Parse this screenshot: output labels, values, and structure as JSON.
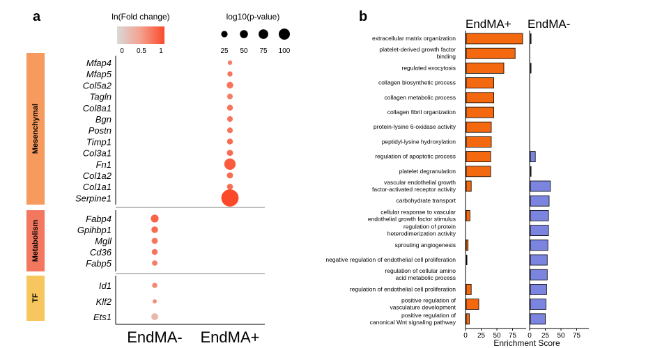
{
  "panel_a": {
    "label": "a",
    "legend_fc_title": "ln(Fold change)",
    "legend_fc_ticks": [
      "0",
      "0.5",
      "1"
    ],
    "legend_p_title": "log10(p-value)",
    "legend_p_ticks": [
      "25",
      "50",
      "75",
      "100"
    ],
    "legend_p_values": [
      25,
      50,
      75,
      100
    ],
    "groups": [
      {
        "name": "Mesenchymal",
        "color": "#f79a5e"
      },
      {
        "name": "Metabolism",
        "color": "#f3775f"
      },
      {
        "name": "TF",
        "color": "#f7c65f"
      }
    ]
  },
  "panel_b": {
    "label": "b",
    "col_left": "EndMA+",
    "col_right": "EndMA-",
    "xlabel": "Enrichment Score",
    "xticks": [
      "0",
      "25",
      "50",
      "75"
    ],
    "left_color": "#f4690f",
    "right_color": "#7b85e0"
  },
  "chart_data": [
    {
      "type": "scatter",
      "subtype": "dot-plot",
      "x_categories": [
        "EndMA-",
        "EndMA+"
      ],
      "genes": [
        {
          "gene": "Mfap4",
          "group": "Mesenchymal",
          "col": "EndMA+",
          "log10p": 12,
          "lnfc": 0.7
        },
        {
          "gene": "Mfap5",
          "group": "Mesenchymal",
          "col": "EndMA+",
          "log10p": 18,
          "lnfc": 0.75
        },
        {
          "gene": "Col5a2",
          "group": "Mesenchymal",
          "col": "EndMA+",
          "log10p": 30,
          "lnfc": 0.75
        },
        {
          "gene": "Tagln",
          "group": "Mesenchymal",
          "col": "EndMA+",
          "log10p": 22,
          "lnfc": 0.7
        },
        {
          "gene": "Col8a1",
          "group": "Mesenchymal",
          "col": "EndMA+",
          "log10p": 24,
          "lnfc": 0.75
        },
        {
          "gene": "Bgn",
          "group": "Mesenchymal",
          "col": "EndMA+",
          "log10p": 22,
          "lnfc": 0.75
        },
        {
          "gene": "Postn",
          "group": "Mesenchymal",
          "col": "EndMA+",
          "log10p": 22,
          "lnfc": 0.75
        },
        {
          "gene": "Timp1",
          "group": "Mesenchymal",
          "col": "EndMA+",
          "log10p": 24,
          "lnfc": 0.8
        },
        {
          "gene": "Col3a1",
          "group": "Mesenchymal",
          "col": "EndMA+",
          "log10p": 26,
          "lnfc": 0.8
        },
        {
          "gene": "Fn1",
          "group": "Mesenchymal",
          "col": "EndMA+",
          "log10p": 70,
          "lnfc": 0.9
        },
        {
          "gene": "Col1a2",
          "group": "Mesenchymal",
          "col": "EndMA+",
          "log10p": 26,
          "lnfc": 0.8
        },
        {
          "gene": "Col1a1",
          "group": "Mesenchymal",
          "col": "EndMA+",
          "log10p": 24,
          "lnfc": 0.8
        },
        {
          "gene": "Serpine1",
          "group": "Mesenchymal",
          "col": "EndMA+",
          "log10p": 120,
          "lnfc": 1.0
        },
        {
          "gene": "Fabp4",
          "group": "Metabolism",
          "col": "EndMA-",
          "log10p": 40,
          "lnfc": 0.85
        },
        {
          "gene": "Gpihbp1",
          "group": "Metabolism",
          "col": "EndMA-",
          "log10p": 30,
          "lnfc": 0.8
        },
        {
          "gene": "Mgll",
          "group": "Metabolism",
          "col": "EndMA-",
          "log10p": 26,
          "lnfc": 0.75
        },
        {
          "gene": "Cd36",
          "group": "Metabolism",
          "col": "EndMA-",
          "log10p": 24,
          "lnfc": 0.75
        },
        {
          "gene": "Fabp5",
          "group": "Metabolism",
          "col": "EndMA-",
          "log10p": 20,
          "lnfc": 0.7
        },
        {
          "gene": "Id1",
          "group": "TF",
          "col": "EndMA-",
          "log10p": 18,
          "lnfc": 0.65
        },
        {
          "gene": "Klf2",
          "group": "TF",
          "col": "EndMA-",
          "log10p": 10,
          "lnfc": 0.6
        },
        {
          "gene": "Ets1",
          "group": "TF",
          "col": "EndMA-",
          "log10p": 32,
          "lnfc": 0.3
        }
      ]
    },
    {
      "type": "bar",
      "orientation": "horizontal",
      "xlabel": "Enrichment Score",
      "xlim": [
        0,
        90
      ],
      "categories": [
        [
          "extracellular matrix organization"
        ],
        [
          "platelet-derived growth factor",
          "binding"
        ],
        [
          "regulated exocytosis"
        ],
        [
          "collagen biosynthetic process"
        ],
        [
          "collagen metabolic process"
        ],
        [
          "collagen fibril organization"
        ],
        [
          "protein-lysine 6-oxidase activity"
        ],
        [
          "peptidyl-lysine hydroxylation"
        ],
        [
          "regulation of apoptotic process"
        ],
        [
          "platelet degranulation"
        ],
        [
          "vascular endothelial growth",
          "factor-activated receptor activity"
        ],
        [
          "carbohydrate transport"
        ],
        [
          "cellular response to vascular",
          "endothelial growth factor stimulus"
        ],
        [
          "regulation of protein",
          "heterodimerization activity"
        ],
        [
          "sprouting angiogenesis"
        ],
        [
          "negative regulation of endothelial cell proliferation"
        ],
        [
          "regulation of cellular amino",
          "acid metabolic process"
        ],
        [
          "regulation of endothelial cell proliferation"
        ],
        [
          "positive regulation of",
          "vasculature development"
        ],
        [
          "positive regulation of",
          "canonical Wnt signaling pathway"
        ]
      ],
      "series": [
        {
          "name": "EndMA+",
          "values": [
            90,
            78,
            60,
            44,
            44,
            44,
            40,
            40,
            39,
            39,
            8,
            0,
            6,
            0,
            3,
            1,
            0,
            8,
            20,
            5
          ]
        },
        {
          "name": "EndMA-",
          "values": [
            1,
            0,
            1,
            0,
            0,
            0,
            0,
            0,
            8,
            1,
            32,
            30,
            29,
            29,
            28,
            27,
            27,
            26,
            25,
            24
          ]
        }
      ]
    }
  ]
}
